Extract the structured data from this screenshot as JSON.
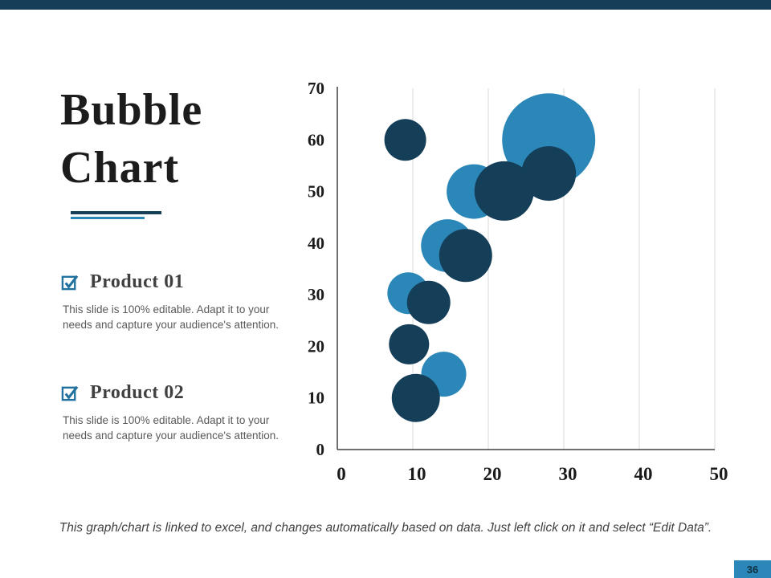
{
  "slide": {
    "title_line1": "Bubble",
    "title_line2": "Chart",
    "page_number": "36",
    "footer_note": "This graph/chart is linked to excel, and changes automatically based on data. Just left click on it and select “Edit Data”."
  },
  "products": [
    {
      "label": "Product 01",
      "description": "This slide is 100% editable. Adapt it to your needs and capture your audience's attention."
    },
    {
      "label": "Product 02",
      "description": "This slide is 100% editable. Adapt it to your needs and capture your audience's attention."
    }
  ],
  "colors": {
    "dark_navy": "#153e59",
    "light_blue": "#2b87b8",
    "checkbox": "#2272a0",
    "grid": "#d9d9d9",
    "axis": "#404040"
  },
  "chart_data": {
    "type": "bubble",
    "title": "",
    "xlabel": "",
    "ylabel": "",
    "xlim": [
      0,
      50
    ],
    "ylim": [
      0,
      70
    ],
    "x_ticks": [
      0,
      10,
      20,
      30,
      40,
      50
    ],
    "y_ticks": [
      0,
      10,
      20,
      30,
      40,
      50,
      60,
      70
    ],
    "grid": "vertical",
    "legend": "none",
    "series": [
      {
        "name": "Product 02",
        "color": "#2b87b8",
        "points": [
          {
            "x": 28,
            "y": 60,
            "r": 58
          },
          {
            "x": 18.1,
            "y": 50,
            "r": 34
          },
          {
            "x": 14.6,
            "y": 39.5,
            "r": 33
          },
          {
            "x": 9.4,
            "y": 30.3,
            "r": 26
          },
          {
            "x": 14.1,
            "y": 14.6,
            "r": 28
          }
        ]
      },
      {
        "name": "Product 01",
        "color": "#153e59",
        "points": [
          {
            "x": 9,
            "y": 60,
            "r": 26
          },
          {
            "x": 28,
            "y": 53.5,
            "r": 34
          },
          {
            "x": 22.1,
            "y": 50.1,
            "r": 37
          },
          {
            "x": 17,
            "y": 37.6,
            "r": 33
          },
          {
            "x": 12.1,
            "y": 28.5,
            "r": 27
          },
          {
            "x": 9.5,
            "y": 20.4,
            "r": 25
          },
          {
            "x": 10.4,
            "y": 10,
            "r": 30
          }
        ]
      }
    ]
  }
}
